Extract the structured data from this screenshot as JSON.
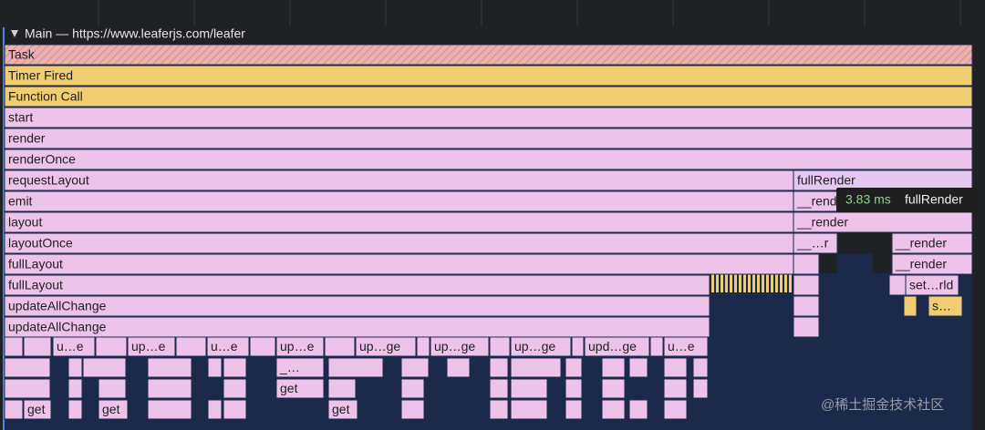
{
  "header": {
    "title": "Main — https://www.leaferjs.com/leafer"
  },
  "rows": [
    [
      "Task"
    ],
    [
      "Timer Fired"
    ],
    [
      "Function Call"
    ],
    [
      "start"
    ],
    [
      "render"
    ],
    [
      "renderOnce"
    ],
    [
      "requestLayout",
      "fullRender"
    ],
    [
      "emit",
      "__render"
    ],
    [
      "layout",
      "__render"
    ],
    [
      "layoutOnce",
      "__…r",
      "__render"
    ],
    [
      "fullLayout",
      "__render"
    ],
    [
      "fullLayout",
      "set…rld"
    ],
    [
      "updateAllChange",
      "s…"
    ],
    [
      "updateAllChange"
    ],
    [
      "u…e",
      "up…e",
      "u…e",
      "up…e",
      "up…ge",
      "up…ge",
      "up…ge",
      "upd…ge",
      "u…e"
    ],
    [
      "_…"
    ],
    [
      "get"
    ],
    [
      "get",
      "get",
      "get"
    ]
  ],
  "tooltip": {
    "duration": "3.83 ms",
    "name": "fullRender"
  },
  "watermark": "@稀土掘金技术社区"
}
